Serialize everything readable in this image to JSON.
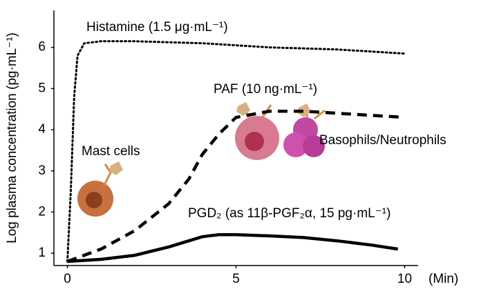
{
  "chart_data": {
    "type": "line",
    "y_label": "Log plasma concentration (pg·mL⁻¹)",
    "x_label": "(Min)",
    "xlim": [
      -0.4,
      10.4
    ],
    "ylim": [
      0.7,
      6.9
    ],
    "xticks": [
      0,
      5,
      10
    ],
    "yticks": [
      1,
      2,
      3,
      4,
      5,
      6
    ],
    "series": [
      {
        "color": "#000000",
        "style": "dotted",
        "x": [
          0,
          0.1,
          0.2,
          0.3,
          0.5,
          1,
          2,
          4,
          6,
          8,
          10
        ],
        "values": [
          0.8,
          2.5,
          4.8,
          5.8,
          6.1,
          6.15,
          6.15,
          6.1,
          6.0,
          5.95,
          5.85
        ]
      },
      {
        "color": "#000000",
        "style": "dashed",
        "x": [
          0,
          1,
          2,
          3,
          3.6,
          4,
          4.5,
          5,
          6,
          7,
          8,
          10
        ],
        "values": [
          0.8,
          1.1,
          1.55,
          2.2,
          2.8,
          3.4,
          3.9,
          4.3,
          4.45,
          4.45,
          4.4,
          4.3
        ]
      },
      {
        "color": "#000000",
        "style": "solid",
        "x": [
          0,
          1,
          2,
          3,
          4,
          4.5,
          5,
          6,
          7,
          8,
          9,
          9.8
        ],
        "values": [
          0.8,
          0.85,
          0.95,
          1.15,
          1.4,
          1.45,
          1.45,
          1.42,
          1.38,
          1.3,
          1.2,
          1.1
        ]
      }
    ],
    "annotations": [
      "Histamine (1.5 μg·mL⁻¹)",
      "PAF (10 ng·mL⁻¹)",
      "Mast cells",
      "Basophils/Neutrophils",
      "PGD₂ (as 11β-PGF₂α, 15 pg·mL⁻¹)"
    ]
  }
}
